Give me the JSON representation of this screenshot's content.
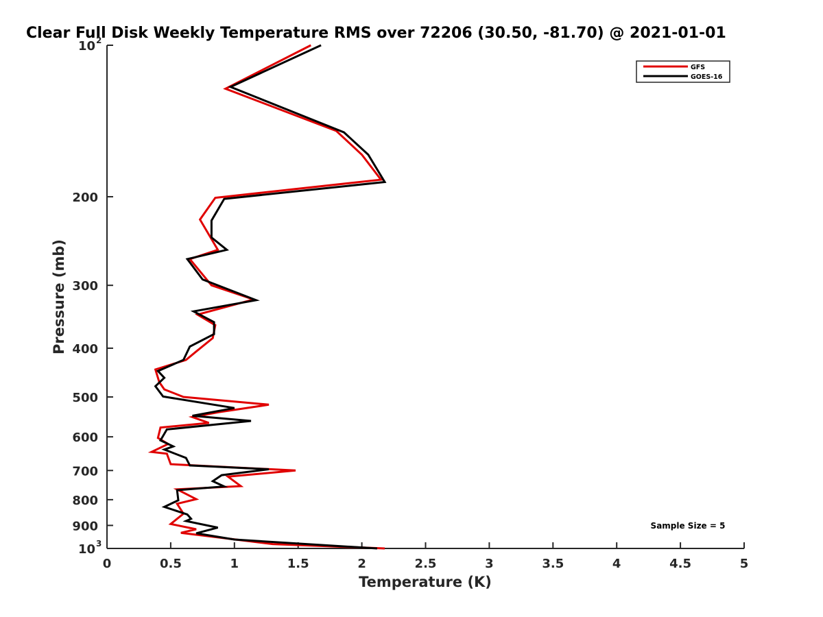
{
  "chart_data": {
    "type": "line",
    "title": "Clear Full Disk Weekly Temperature RMS over 72206 (30.50, -81.70) @ 2021-01-01",
    "xlabel": "Temperature (K)",
    "ylabel": "Pressure (mb)",
    "xlim": [
      0,
      5
    ],
    "ylim": [
      100,
      1000
    ],
    "y_scale": "log",
    "y_reversed": true,
    "grid": false,
    "legend_position": "top-right",
    "x_ticks": [
      "0",
      "0.5",
      "1",
      "1.5",
      "2",
      "2.5",
      "3",
      "3.5",
      "4",
      "4.5",
      "5"
    ],
    "y_ticks": [
      {
        "value": 100,
        "label": "10",
        "exp": "2"
      },
      {
        "value": 200,
        "label": "200",
        "exp": ""
      },
      {
        "value": 300,
        "label": "300",
        "exp": ""
      },
      {
        "value": 400,
        "label": "400",
        "exp": ""
      },
      {
        "value": 500,
        "label": "500",
        "exp": ""
      },
      {
        "value": 600,
        "label": "600",
        "exp": ""
      },
      {
        "value": 700,
        "label": "700",
        "exp": ""
      },
      {
        "value": 800,
        "label": "800",
        "exp": ""
      },
      {
        "value": 900,
        "label": "900",
        "exp": ""
      },
      {
        "value": 1000,
        "label": "10",
        "exp": "3"
      }
    ],
    "annotation": "Sample Size = 5",
    "series": [
      {
        "name": "GFS",
        "color": "#e00000",
        "points": [
          [
            1.6,
            100
          ],
          [
            0.93,
            122
          ],
          [
            1.8,
            148
          ],
          [
            2.0,
            165
          ],
          [
            2.15,
            185
          ],
          [
            0.85,
            201
          ],
          [
            0.73,
            222
          ],
          [
            0.87,
            255
          ],
          [
            0.65,
            266
          ],
          [
            0.82,
            300
          ],
          [
            1.15,
            320
          ],
          [
            0.71,
            343
          ],
          [
            0.85,
            360
          ],
          [
            0.83,
            382
          ],
          [
            0.7,
            406
          ],
          [
            0.62,
            422
          ],
          [
            0.38,
            441
          ],
          [
            0.41,
            467
          ],
          [
            0.45,
            483
          ],
          [
            0.6,
            500
          ],
          [
            1.27,
            518
          ],
          [
            0.88,
            536
          ],
          [
            0.67,
            548
          ],
          [
            0.8,
            563
          ],
          [
            0.42,
            575
          ],
          [
            0.4,
            603
          ],
          [
            0.48,
            620
          ],
          [
            0.35,
            643
          ],
          [
            0.47,
            648
          ],
          [
            0.5,
            680
          ],
          [
            1.48,
            700
          ],
          [
            0.95,
            720
          ],
          [
            1.05,
            752
          ],
          [
            0.55,
            763
          ],
          [
            0.7,
            798
          ],
          [
            0.55,
            815
          ],
          [
            0.6,
            853
          ],
          [
            0.5,
            894
          ],
          [
            0.7,
            916
          ],
          [
            0.58,
            931
          ],
          [
            1.3,
            980
          ],
          [
            2.18,
            1000
          ]
        ]
      },
      {
        "name": "GOES-16",
        "color": "#000000",
        "points": [
          [
            1.68,
            100
          ],
          [
            0.97,
            121
          ],
          [
            1.86,
            149
          ],
          [
            2.05,
            165
          ],
          [
            2.18,
            187
          ],
          [
            0.92,
            202
          ],
          [
            0.82,
            223
          ],
          [
            0.82,
            241
          ],
          [
            0.94,
            255
          ],
          [
            0.63,
            266
          ],
          [
            0.75,
            292
          ],
          [
            1.17,
            321
          ],
          [
            0.68,
            338
          ],
          [
            0.84,
            355
          ],
          [
            0.84,
            375
          ],
          [
            0.65,
            397
          ],
          [
            0.6,
            422
          ],
          [
            0.4,
            444
          ],
          [
            0.45,
            458
          ],
          [
            0.38,
            476
          ],
          [
            0.44,
            499
          ],
          [
            1.0,
            526
          ],
          [
            0.67,
            545
          ],
          [
            1.13,
            558
          ],
          [
            0.47,
            580
          ],
          [
            0.42,
            610
          ],
          [
            0.52,
            627
          ],
          [
            0.45,
            636
          ],
          [
            0.62,
            661
          ],
          [
            0.65,
            684
          ],
          [
            1.27,
            696
          ],
          [
            0.9,
            715
          ],
          [
            0.83,
            735
          ],
          [
            0.92,
            753
          ],
          [
            0.55,
            766
          ],
          [
            0.56,
            802
          ],
          [
            0.45,
            827
          ],
          [
            0.63,
            856
          ],
          [
            0.66,
            873
          ],
          [
            0.62,
            882
          ],
          [
            0.87,
            909
          ],
          [
            0.7,
            933
          ],
          [
            1.0,
            960
          ],
          [
            2.12,
            1000
          ]
        ]
      }
    ]
  }
}
